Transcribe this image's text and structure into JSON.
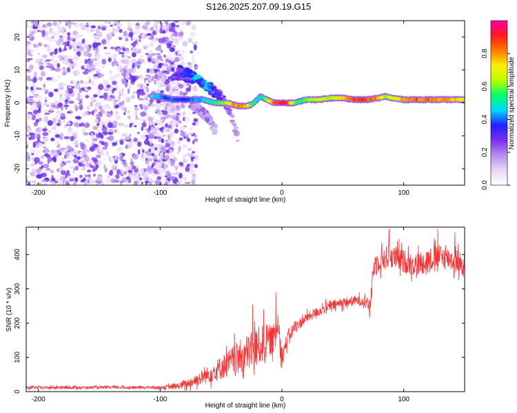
{
  "figure": {
    "title": "S126.2025.207.09.19.G15"
  },
  "chart_data": [
    {
      "type": "heatmap",
      "panel": "spectrogram",
      "xlabel": "Height of straight line (km)",
      "ylabel": "Frequency (Hz)",
      "xlim": [
        -210,
        150
      ],
      "ylim": [
        -25,
        25
      ],
      "x_ticks": [
        -200,
        -100,
        0,
        100
      ],
      "y_ticks": [
        -20,
        -10,
        0,
        10,
        20
      ],
      "colorbar": {
        "label": "Normalized spectral amplitude",
        "range": [
          0,
          1
        ],
        "ticks": [
          0.0,
          0.2,
          0.4,
          0.6,
          0.8
        ],
        "colormap": [
          "#ffffff",
          "#e6d6f6",
          "#b58ef0",
          "#7a2ef0",
          "#2020ff",
          "#00d8ff",
          "#00ff6a",
          "#b8ff00",
          "#ffee00",
          "#ff7a00",
          "#ff1a1a",
          "#ff00a8"
        ]
      },
      "noise_region_x": [
        -210,
        -85
      ],
      "signal_track": {
        "x": [
          -107,
          -100,
          -95,
          -90,
          -85,
          -80,
          -75,
          -70,
          -65,
          -60,
          -55,
          -50,
          -45,
          -40,
          -35,
          -30,
          -25,
          -20,
          -18,
          -15,
          -10,
          -5,
          0,
          5,
          10,
          15,
          20,
          30,
          40,
          50,
          60,
          70,
          80,
          85,
          90,
          100,
          110,
          120,
          130,
          140,
          150
        ],
        "freq": [
          2,
          2,
          1.5,
          1,
          1,
          1,
          1,
          1,
          1,
          0.5,
          0,
          0,
          0,
          -0.5,
          -1,
          -1,
          -0.5,
          1,
          2,
          1.5,
          0.5,
          0,
          0,
          0,
          0,
          0.5,
          1,
          1,
          1.5,
          1.5,
          1,
          1,
          1.5,
          2,
          1.5,
          1,
          1,
          1,
          1,
          1,
          1
        ],
        "amplitude": [
          0.5,
          0.45,
          0.4,
          0.4,
          0.4,
          0.35,
          0.4,
          0.45,
          0.45,
          0.5,
          0.55,
          0.6,
          0.65,
          0.8,
          0.85,
          0.8,
          0.6,
          0.5,
          0.45,
          0.55,
          0.7,
          0.9,
          0.95,
          0.9,
          0.6,
          0.55,
          0.6,
          0.7,
          0.65,
          0.75,
          0.9,
          0.9,
          0.8,
          0.6,
          0.7,
          0.8,
          0.85,
          0.85,
          0.8,
          0.8,
          0.7
        ]
      },
      "secondary_branches": [
        {
          "x": [
            -90,
            -80,
            -70,
            -60,
            -50,
            -42,
            -35
          ],
          "freq": [
            8,
            8,
            7,
            5,
            2,
            -3,
            -12
          ],
          "amplitude": [
            0.25,
            0.3,
            0.35,
            0.3,
            0.25,
            0.2,
            0.15
          ]
        },
        {
          "x": [
            -85,
            -75,
            -65,
            -55,
            -50
          ],
          "freq": [
            10,
            9,
            6,
            3,
            1
          ],
          "amplitude": [
            0.3,
            0.4,
            0.45,
            0.35,
            0.3
          ]
        },
        {
          "x": [
            -75,
            -68,
            -62,
            -58,
            -55
          ],
          "freq": [
            0,
            -2,
            -4,
            -6,
            -8
          ],
          "amplitude": [
            0.2,
            0.2,
            0.2,
            0.15,
            0.15
          ]
        }
      ]
    },
    {
      "type": "line",
      "panel": "snr",
      "xlabel": "Height of straight line (km)",
      "ylabel": "SNR (10 * v/v)",
      "xlim": [
        -210,
        150
      ],
      "ylim": [
        0,
        480
      ],
      "x_ticks": [
        -200,
        -100,
        0,
        100
      ],
      "y_ticks": [
        0,
        100,
        200,
        300,
        400
      ],
      "color": "#ff3030",
      "envelope": {
        "x": [
          -210,
          -180,
          -150,
          -120,
          -100,
          -90,
          -80,
          -70,
          -60,
          -50,
          -40,
          -30,
          -20,
          -10,
          -5,
          -3,
          0,
          5,
          10,
          20,
          30,
          40,
          50,
          60,
          70,
          72,
          75,
          80,
          90,
          100,
          110,
          120,
          130,
          140,
          145,
          150
        ],
        "y": [
          12,
          12,
          12,
          12,
          12,
          14,
          20,
          35,
          50,
          70,
          90,
          110,
          130,
          150,
          160,
          200,
          100,
          160,
          185,
          215,
          235,
          250,
          260,
          265,
          265,
          235,
          360,
          385,
          395,
          380,
          370,
          385,
          395,
          385,
          380,
          360
        ]
      },
      "noise_amplitude": {
        "x": [
          -210,
          -100,
          -80,
          -60,
          -40,
          -20,
          -5,
          5,
          20,
          40,
          70,
          75,
          150
        ],
        "y": [
          4,
          4,
          12,
          25,
          45,
          60,
          40,
          20,
          15,
          15,
          15,
          35,
          35
        ]
      },
      "spikes": [
        {
          "x": -24,
          "y": 255
        },
        {
          "x": -15,
          "y": 240
        },
        {
          "x": -5,
          "y": 290
        },
        {
          "x": -2,
          "y": 195
        },
        {
          "x": 88,
          "y": 475
        },
        {
          "x": 128,
          "y": 475
        },
        {
          "x": 142,
          "y": 465
        }
      ]
    }
  ]
}
